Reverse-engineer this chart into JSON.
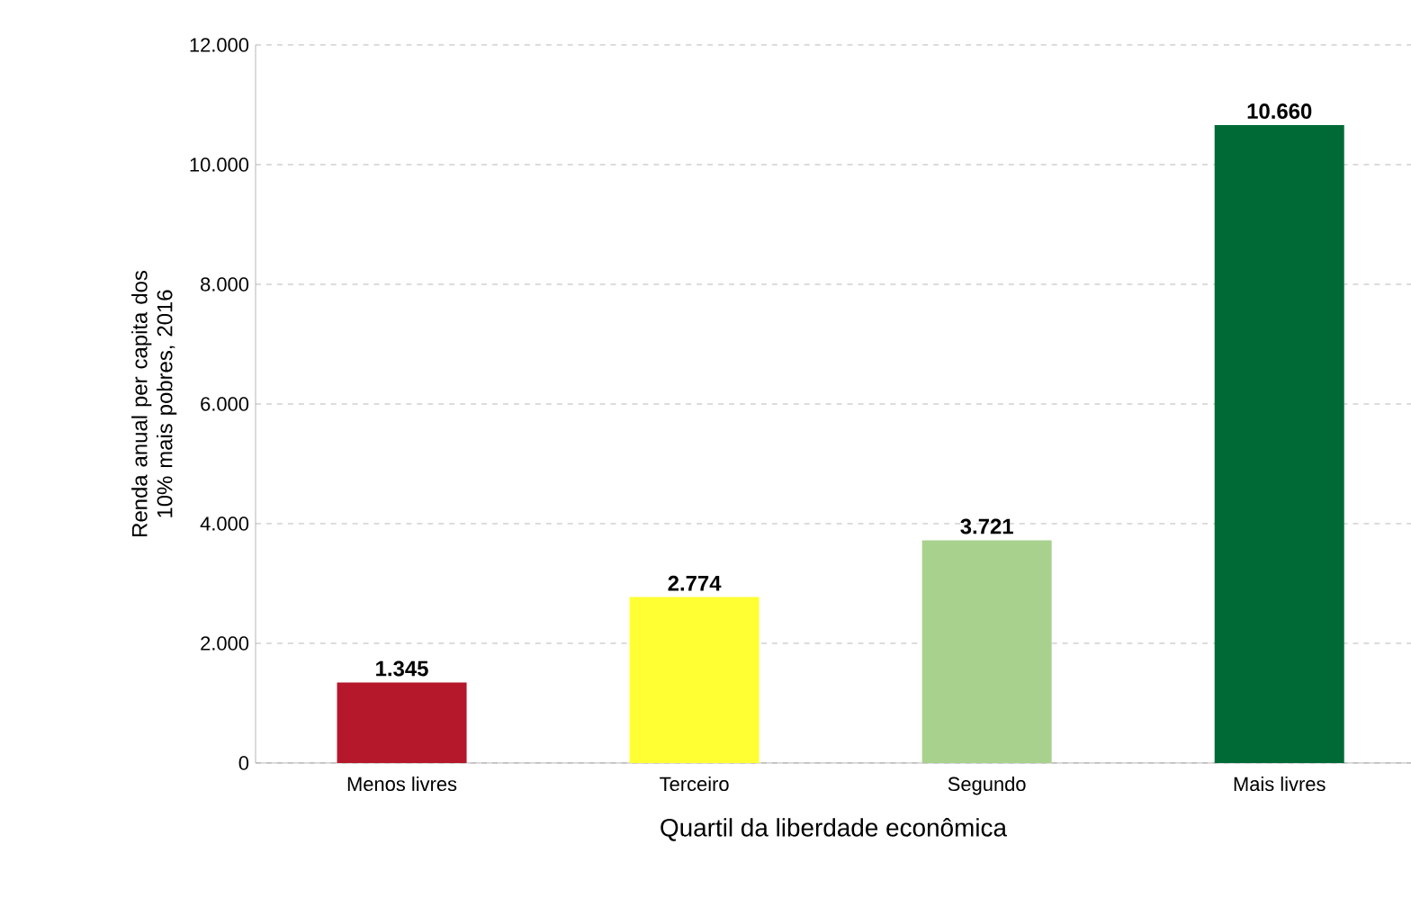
{
  "chart_data": {
    "type": "bar",
    "xlabel": "Quartil da liberdade econômica",
    "ylabel": "Renda anual per capita dos 10% mais pobres, 2016",
    "categories": [
      "Menos livres",
      "Terceiro",
      "Segundo",
      "Mais livres"
    ],
    "values": [
      1345,
      2774,
      3721,
      10660
    ],
    "colors": [
      "#b5172b",
      "#ffff33",
      "#a9d18e",
      "#006a36"
    ],
    "value_labels": [
      "1.345",
      "2.774",
      "3.721",
      "10.660"
    ],
    "ylim": [
      0,
      12000
    ],
    "yticks": [
      0,
      {
        "value": 2000,
        "label": "2.000"
      },
      {
        "value": 4000,
        "label": "4.000"
      },
      {
        "value": 6000,
        "label": "6.000"
      },
      {
        "value": 8000,
        "label": "8.000"
      },
      {
        "value": 10000,
        "label": "10.000"
      },
      {
        "value": 12000,
        "label": "12.000"
      }
    ],
    "grid": "y"
  }
}
